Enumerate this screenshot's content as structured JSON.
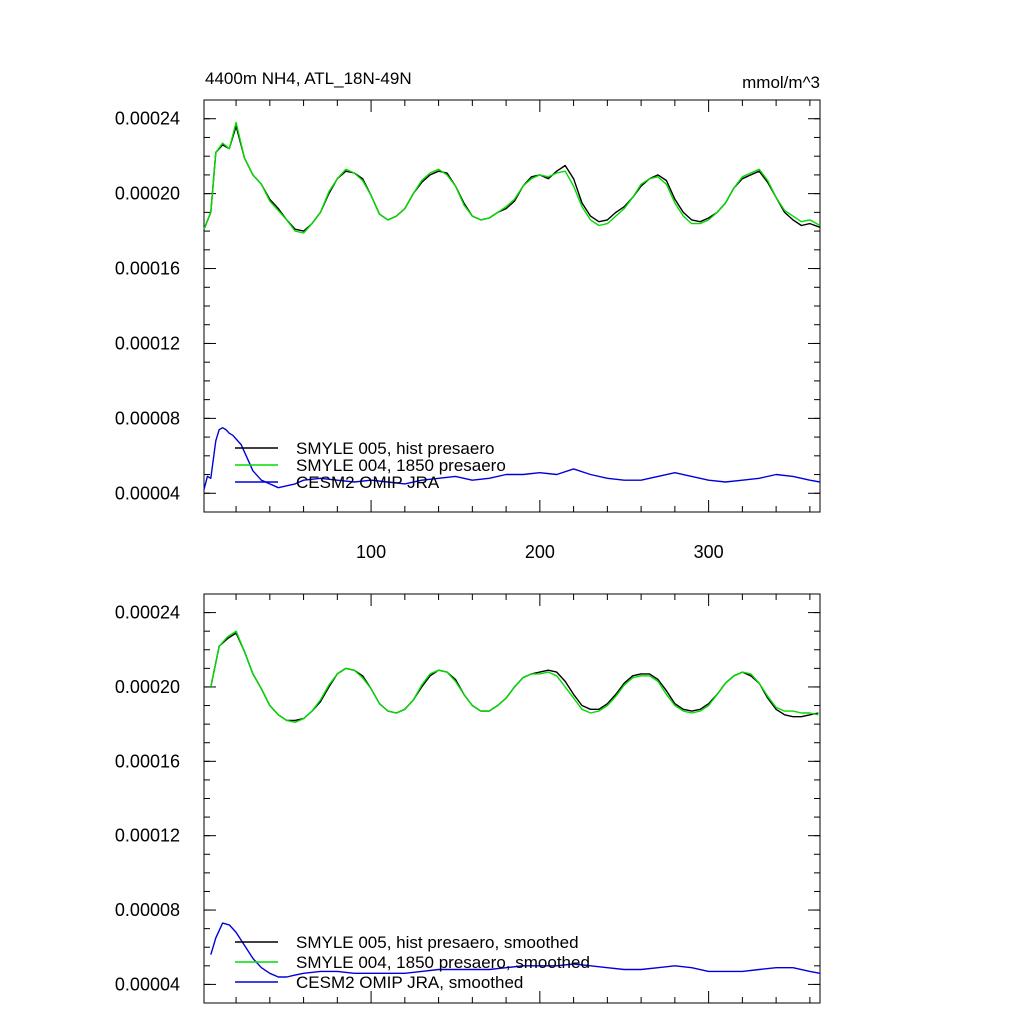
{
  "chart_data": [
    {
      "type": "line",
      "title": "4400m NH4, ATL_18N-49N",
      "units": "mmol/m^3",
      "xlim": [
        1,
        366
      ],
      "ylim": [
        3e-05,
        0.00025
      ],
      "x_ticks": [
        100,
        200,
        300
      ],
      "x_tick_labels": [
        "100",
        "200",
        "300"
      ],
      "y_ticks": [
        4e-05,
        8e-05,
        0.00012,
        0.00016,
        0.0002,
        0.00024
      ],
      "y_tick_labels": [
        "0.00004",
        "0.00008",
        "0.00012",
        "0.00016",
        "0.00020",
        "0.00024"
      ],
      "legend_position": "bottom-left",
      "grid": false,
      "series": [
        {
          "name": "SMYLE 005, hist presaero",
          "color": "#000000",
          "x": [
            1,
            5,
            8,
            12,
            16,
            20,
            25,
            30,
            35,
            40,
            45,
            50,
            55,
            60,
            65,
            70,
            75,
            80,
            85,
            90,
            95,
            100,
            105,
            110,
            115,
            120,
            125,
            130,
            135,
            140,
            145,
            150,
            155,
            160,
            165,
            170,
            175,
            180,
            185,
            190,
            195,
            200,
            205,
            210,
            215,
            220,
            225,
            230,
            235,
            240,
            245,
            250,
            255,
            260,
            265,
            270,
            275,
            280,
            285,
            290,
            295,
            300,
            305,
            310,
            315,
            320,
            325,
            330,
            335,
            340,
            345,
            350,
            355,
            360,
            366
          ],
          "y": [
            0.000181,
            0.00019,
            0.000222,
            0.000226,
            0.000224,
            0.000236,
            0.000219,
            0.00021,
            0.000205,
            0.000197,
            0.000192,
            0.000186,
            0.000181,
            0.00018,
            0.000184,
            0.00019,
            0.0002,
            0.000208,
            0.000212,
            0.000211,
            0.000208,
            0.000199,
            0.000189,
            0.000186,
            0.000188,
            0.000192,
            0.0002,
            0.000206,
            0.00021,
            0.000212,
            0.000211,
            0.000204,
            0.000195,
            0.000188,
            0.000186,
            0.000187,
            0.00019,
            0.000192,
            0.000196,
            0.000204,
            0.000209,
            0.00021,
            0.000208,
            0.000212,
            0.000215,
            0.000208,
            0.000195,
            0.000188,
            0.000185,
            0.000186,
            0.00019,
            0.000193,
            0.000198,
            0.000204,
            0.000208,
            0.00021,
            0.000207,
            0.000197,
            0.00019,
            0.000186,
            0.000185,
            0.000187,
            0.00019,
            0.000195,
            0.000203,
            0.000208,
            0.00021,
            0.000212,
            0.000206,
            0.000198,
            0.00019,
            0.000186,
            0.000183,
            0.000184,
            0.000182
          ]
        },
        {
          "name": "SMYLE 004, 1850 presaero",
          "color": "#00dd00",
          "x": [
            1,
            5,
            8,
            12,
            16,
            20,
            25,
            30,
            35,
            40,
            45,
            50,
            55,
            60,
            65,
            70,
            75,
            80,
            85,
            90,
            95,
            100,
            105,
            110,
            115,
            120,
            125,
            130,
            135,
            140,
            145,
            150,
            155,
            160,
            165,
            170,
            175,
            180,
            185,
            190,
            195,
            200,
            205,
            210,
            215,
            220,
            225,
            230,
            235,
            240,
            245,
            250,
            255,
            260,
            265,
            270,
            275,
            280,
            285,
            290,
            295,
            300,
            305,
            310,
            315,
            320,
            325,
            330,
            335,
            340,
            345,
            350,
            355,
            360,
            366
          ],
          "y": [
            0.000181,
            0.00019,
            0.000222,
            0.000227,
            0.000224,
            0.000238,
            0.000219,
            0.00021,
            0.000205,
            0.000196,
            0.000191,
            0.000186,
            0.00018,
            0.000179,
            0.000184,
            0.00019,
            0.000201,
            0.000208,
            0.000213,
            0.000211,
            0.000207,
            0.000199,
            0.000189,
            0.000186,
            0.000188,
            0.000192,
            0.0002,
            0.000207,
            0.000211,
            0.000213,
            0.00021,
            0.000204,
            0.000194,
            0.000188,
            0.000186,
            0.000187,
            0.00019,
            0.000193,
            0.000197,
            0.000204,
            0.000208,
            0.00021,
            0.000209,
            0.000211,
            0.000212,
            0.000204,
            0.000193,
            0.000186,
            0.000183,
            0.000184,
            0.000188,
            0.000192,
            0.000198,
            0.000205,
            0.000208,
            0.000209,
            0.000205,
            0.000195,
            0.000188,
            0.000184,
            0.000184,
            0.000186,
            0.00019,
            0.000195,
            0.000203,
            0.000209,
            0.000211,
            0.000213,
            0.000207,
            0.000198,
            0.000191,
            0.000188,
            0.000185,
            0.000186,
            0.000183
          ]
        },
        {
          "name": "CESM2 OMIP JRA",
          "color": "#0000dd",
          "x": [
            1,
            3,
            5,
            8,
            10,
            12,
            14,
            16,
            18,
            20,
            23,
            26,
            30,
            35,
            40,
            45,
            50,
            55,
            60,
            70,
            80,
            90,
            100,
            110,
            120,
            130,
            140,
            150,
            160,
            170,
            180,
            190,
            200,
            210,
            220,
            230,
            240,
            250,
            260,
            270,
            280,
            290,
            300,
            310,
            320,
            330,
            340,
            350,
            360,
            366
          ],
          "y": [
            4.2e-05,
            4.9e-05,
            4.8e-05,
            6.8e-05,
            7.4e-05,
            7.5e-05,
            7.4e-05,
            7.2e-05,
            7.1e-05,
            6.9e-05,
            6.6e-05,
            6e-05,
            5.2e-05,
            4.7e-05,
            4.5e-05,
            4.3e-05,
            4.4e-05,
            4.5e-05,
            4.7e-05,
            4.8e-05,
            4.7e-05,
            4.6e-05,
            4.7e-05,
            4.6e-05,
            4.5e-05,
            4.7e-05,
            4.8e-05,
            4.9e-05,
            4.7e-05,
            4.8e-05,
            5e-05,
            5e-05,
            5.1e-05,
            5e-05,
            5.3e-05,
            5e-05,
            4.8e-05,
            4.7e-05,
            4.7e-05,
            4.9e-05,
            5.1e-05,
            4.9e-05,
            4.7e-05,
            4.6e-05,
            4.7e-05,
            4.8e-05,
            5e-05,
            4.9e-05,
            4.7e-05,
            4.6e-05
          ]
        }
      ]
    },
    {
      "type": "line",
      "xlim": [
        1,
        366
      ],
      "ylim": [
        3e-05,
        0.00025
      ],
      "x_ticks": [
        100,
        200,
        300
      ],
      "y_ticks": [
        4e-05,
        8e-05,
        0.00012,
        0.00016,
        0.0002,
        0.00024
      ],
      "y_tick_labels": [
        "0.00004",
        "0.00008",
        "0.00012",
        "0.00016",
        "0.00020",
        "0.00024"
      ],
      "legend_position": "bottom-left",
      "grid": false,
      "series": [
        {
          "name": "SMYLE 005, hist presaero, smoothed",
          "color": "#000000",
          "x": [
            5,
            10,
            15,
            20,
            25,
            30,
            35,
            40,
            45,
            50,
            55,
            60,
            65,
            70,
            75,
            80,
            85,
            90,
            95,
            100,
            105,
            110,
            115,
            120,
            125,
            130,
            135,
            140,
            145,
            150,
            155,
            160,
            165,
            170,
            175,
            180,
            185,
            190,
            195,
            200,
            205,
            210,
            215,
            220,
            225,
            230,
            235,
            240,
            245,
            250,
            255,
            260,
            265,
            270,
            275,
            280,
            285,
            290,
            295,
            300,
            305,
            310,
            315,
            320,
            325,
            330,
            335,
            340,
            345,
            350,
            355,
            360,
            365
          ],
          "y": [
            0.0002,
            0.000222,
            0.000226,
            0.000229,
            0.000219,
            0.000207,
            0.000199,
            0.00019,
            0.000185,
            0.000182,
            0.000182,
            0.000183,
            0.000187,
            0.000192,
            0.0002,
            0.000207,
            0.00021,
            0.000209,
            0.000206,
            0.000199,
            0.000191,
            0.000187,
            0.000186,
            0.000188,
            0.000193,
            0.0002,
            0.000206,
            0.000209,
            0.000208,
            0.000204,
            0.000196,
            0.00019,
            0.000187,
            0.000187,
            0.00019,
            0.000194,
            0.0002,
            0.000205,
            0.000207,
            0.000208,
            0.000209,
            0.000208,
            0.000203,
            0.000196,
            0.00019,
            0.000188,
            0.000188,
            0.000191,
            0.000196,
            0.000202,
            0.000206,
            0.000207,
            0.000207,
            0.000204,
            0.000198,
            0.000191,
            0.000188,
            0.000187,
            0.000188,
            0.000191,
            0.000196,
            0.000202,
            0.000206,
            0.000208,
            0.000206,
            0.000202,
            0.000194,
            0.000188,
            0.000185,
            0.000184,
            0.000184,
            0.000185,
            0.000186
          ]
        },
        {
          "name": "SMYLE 004, 1850 presaero, smoothed",
          "color": "#00dd00",
          "x": [
            5,
            10,
            15,
            20,
            25,
            30,
            35,
            40,
            45,
            50,
            55,
            60,
            65,
            70,
            75,
            80,
            85,
            90,
            95,
            100,
            105,
            110,
            115,
            120,
            125,
            130,
            135,
            140,
            145,
            150,
            155,
            160,
            165,
            170,
            175,
            180,
            185,
            190,
            195,
            200,
            205,
            210,
            215,
            220,
            225,
            230,
            235,
            240,
            245,
            250,
            255,
            260,
            265,
            270,
            275,
            280,
            285,
            290,
            295,
            300,
            305,
            310,
            315,
            320,
            325,
            330,
            335,
            340,
            345,
            350,
            355,
            360,
            365
          ],
          "y": [
            0.0002,
            0.000222,
            0.000227,
            0.00023,
            0.000219,
            0.000207,
            0.000199,
            0.00019,
            0.000185,
            0.000182,
            0.000181,
            0.000183,
            0.000187,
            0.000193,
            0.000201,
            0.000207,
            0.00021,
            0.000209,
            0.000205,
            0.000199,
            0.000191,
            0.000187,
            0.000186,
            0.000188,
            0.000193,
            0.000201,
            0.000207,
            0.000209,
            0.000208,
            0.000203,
            0.000196,
            0.00019,
            0.000187,
            0.000187,
            0.00019,
            0.000194,
            0.0002,
            0.000205,
            0.000207,
            0.000207,
            0.000208,
            0.000206,
            0.0002,
            0.000194,
            0.000188,
            0.000186,
            0.000187,
            0.00019,
            0.000195,
            0.000201,
            0.000205,
            0.000206,
            0.000206,
            0.000203,
            0.000196,
            0.00019,
            0.000187,
            0.000186,
            0.000187,
            0.00019,
            0.000196,
            0.000202,
            0.000206,
            0.000208,
            0.000207,
            0.000202,
            0.000195,
            0.000189,
            0.000187,
            0.000187,
            0.000186,
            0.000186,
            0.000185
          ]
        },
        {
          "name": "CESM2 OMIP JRA, smoothed",
          "color": "#0000dd",
          "x": [
            5,
            8,
            12,
            16,
            20,
            25,
            30,
            35,
            40,
            45,
            50,
            55,
            60,
            70,
            80,
            90,
            100,
            110,
            120,
            130,
            140,
            150,
            160,
            170,
            180,
            190,
            200,
            210,
            220,
            230,
            240,
            250,
            260,
            270,
            280,
            290,
            300,
            310,
            320,
            330,
            340,
            350,
            360,
            366
          ],
          "y": [
            5.6e-05,
            6.5e-05,
            7.3e-05,
            7.2e-05,
            6.8e-05,
            6.1e-05,
            5.4e-05,
            4.9e-05,
            4.6e-05,
            4.4e-05,
            4.4e-05,
            4.5e-05,
            4.6e-05,
            4.7e-05,
            4.7e-05,
            4.6e-05,
            4.6e-05,
            4.6e-05,
            4.6e-05,
            4.7e-05,
            4.8e-05,
            4.8e-05,
            4.8e-05,
            4.8e-05,
            4.9e-05,
            5e-05,
            5e-05,
            5e-05,
            5.1e-05,
            5e-05,
            4.9e-05,
            4.8e-05,
            4.8e-05,
            4.9e-05,
            5e-05,
            4.9e-05,
            4.7e-05,
            4.7e-05,
            4.7e-05,
            4.8e-05,
            4.9e-05,
            4.9e-05,
            4.7e-05,
            4.6e-05
          ]
        }
      ]
    }
  ]
}
